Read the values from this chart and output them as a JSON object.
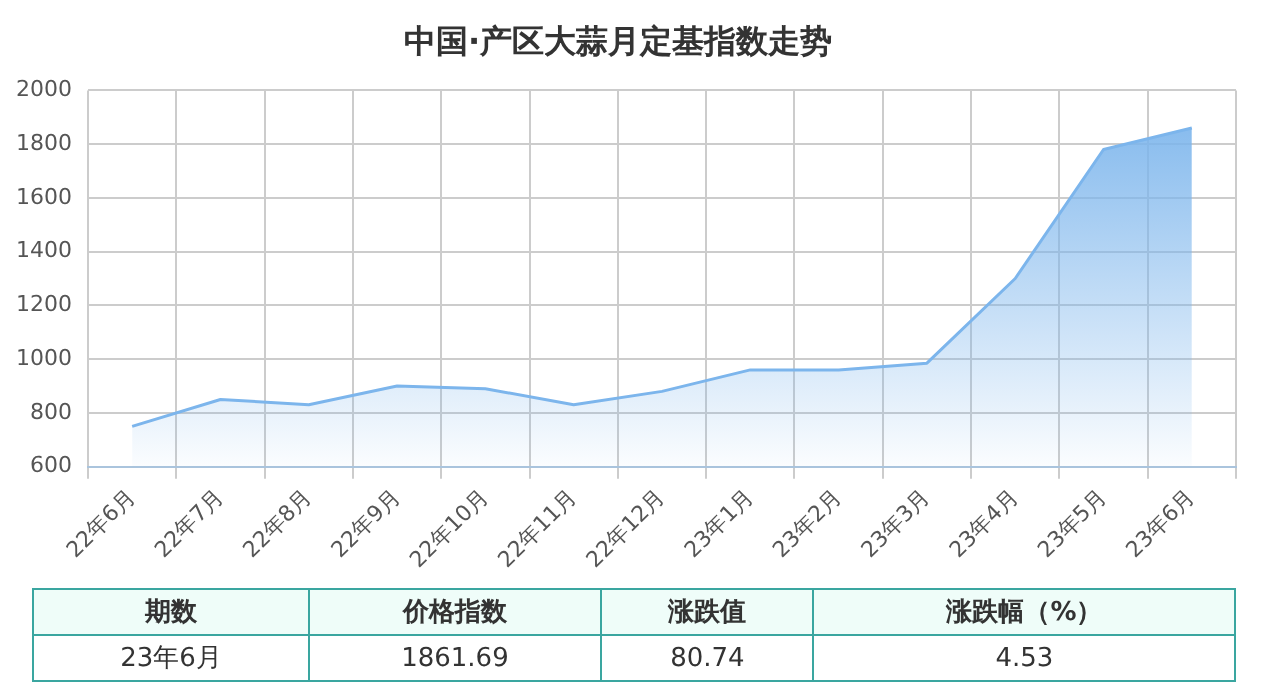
{
  "chart_data": [
    {
      "type": "area",
      "title": "中国·产区大蒜月定基指数走势",
      "categories": [
        "22年6月",
        "22年7月",
        "22年8月",
        "22年9月",
        "22年10月",
        "22年11月",
        "22年12月",
        "23年1月",
        "23年2月",
        "23年3月",
        "23年4月",
        "23年5月",
        "23年6月"
      ],
      "series": [
        {
          "color": "#7cb5ec",
          "values": [
            750,
            850,
            830,
            900,
            890,
            830,
            880,
            960,
            960,
            985,
            1300,
            1780,
            1860
          ]
        }
      ],
      "ylim": [
        600,
        2000
      ],
      "yticks": [
        600,
        800,
        1000,
        1200,
        1400,
        1600,
        1800,
        2000
      ],
      "grid": true,
      "legend": false,
      "marker": "none"
    },
    {
      "type": "other",
      "categories": [
        "期数",
        "价格指数",
        "涨跌值",
        "涨跌幅（%）"
      ],
      "value_labels": [
        "23年6月",
        "1861.69",
        "80.74",
        "4.53"
      ]
    }
  ]
}
